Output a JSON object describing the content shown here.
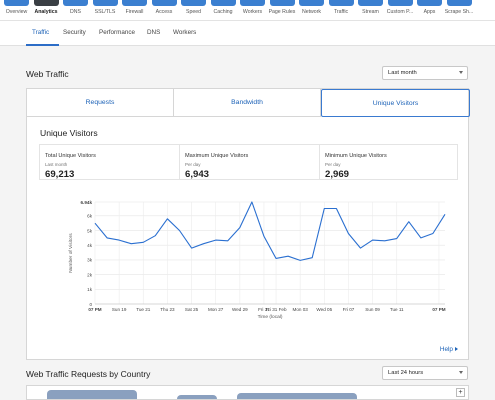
{
  "app_icons": [
    {
      "label": "Overview",
      "icon": "overview-icon"
    },
    {
      "label": "Analytics",
      "icon": "analytics-icon",
      "active": true
    },
    {
      "label": "DNS",
      "icon": "dns-icon"
    },
    {
      "label": "SSL/TLS",
      "icon": "lock-icon"
    },
    {
      "label": "Firewall",
      "icon": "firewall-icon"
    },
    {
      "label": "Access",
      "icon": "access-icon"
    },
    {
      "label": "Speed",
      "icon": "speed-icon"
    },
    {
      "label": "Caching",
      "icon": "caching-icon"
    },
    {
      "label": "Workers",
      "icon": "workers-icon"
    },
    {
      "label": "Page Rules",
      "icon": "page-rules-icon"
    },
    {
      "label": "Network",
      "icon": "network-icon"
    },
    {
      "label": "Traffic",
      "icon": "traffic-icon"
    },
    {
      "label": "Stream",
      "icon": "stream-icon"
    },
    {
      "label": "Custom P...",
      "icon": "custom-pages-icon"
    },
    {
      "label": "Apps",
      "icon": "apps-icon"
    },
    {
      "label": "Scrape Sh...",
      "icon": "scrape-shield-icon"
    }
  ],
  "sub_tabs": [
    "Traffic",
    "Security",
    "Performance",
    "DNS",
    "Workers"
  ],
  "active_sub_tab": "Traffic",
  "web_traffic": {
    "title": "Web Traffic",
    "range_select": "Last month",
    "metric_tabs": [
      "Requests",
      "Bandwidth",
      "Unique Visitors"
    ],
    "active_metric_tab": "Unique Visitors",
    "panel_title": "Unique Visitors",
    "stats": [
      {
        "label": "Total Unique Visitors",
        "sub": "Last month",
        "value": "69,213"
      },
      {
        "label": "Maximum Unique Visitors",
        "sub": "Per day",
        "value": "6,943"
      },
      {
        "label": "Minimum Unique Visitors",
        "sub": "Per day",
        "value": "2,969"
      }
    ],
    "help_label": "Help"
  },
  "country": {
    "title": "Web Traffic Requests by Country",
    "range_select": "Last 24 hours",
    "zoom_in_label": "+"
  },
  "colors": {
    "accent": "#1c62b7",
    "line": "#2a6fd0",
    "app_icon": "#3b7fd0",
    "app_icon_active": "#3a3f44"
  },
  "chart_data": {
    "type": "line",
    "xlabel": "Time (local)",
    "ylabel": "Number of Visitors",
    "ylim": [
      0,
      6940
    ],
    "ytick_labels": [
      "0",
      "1k",
      "2k",
      "3k",
      "4k",
      "5k",
      "6k",
      "6.94k"
    ],
    "ytick_values": [
      0,
      1000,
      2000,
      3000,
      4000,
      5000,
      6000,
      6940
    ],
    "xtick_labels": [
      "07 PM",
      "Sun 19",
      "Tue 21",
      "Thu 23",
      "Sat 25",
      "Mon 27",
      "Wed 29",
      "Fri 31",
      "Fri 31 Feb",
      "Mon 03",
      "Wed 05",
      "Fri 07",
      "Sun 09",
      "Tue 11",
      "07 PM"
    ],
    "xtick_index": [
      0,
      2,
      4,
      6,
      8,
      10,
      12,
      14,
      15,
      17,
      19,
      21,
      23,
      25,
      28.5
    ],
    "grid": true,
    "series": [
      {
        "values": [
          5500,
          4500,
          4350,
          4100,
          4200,
          4650,
          5800,
          5000,
          3800,
          4100,
          4350,
          4300,
          5200,
          6943,
          4600,
          3100,
          3250,
          2969,
          3150,
          6500,
          6500,
          4800,
          3800,
          4350,
          4300,
          4450,
          5600,
          4500,
          4800,
          6100
        ]
      }
    ]
  }
}
